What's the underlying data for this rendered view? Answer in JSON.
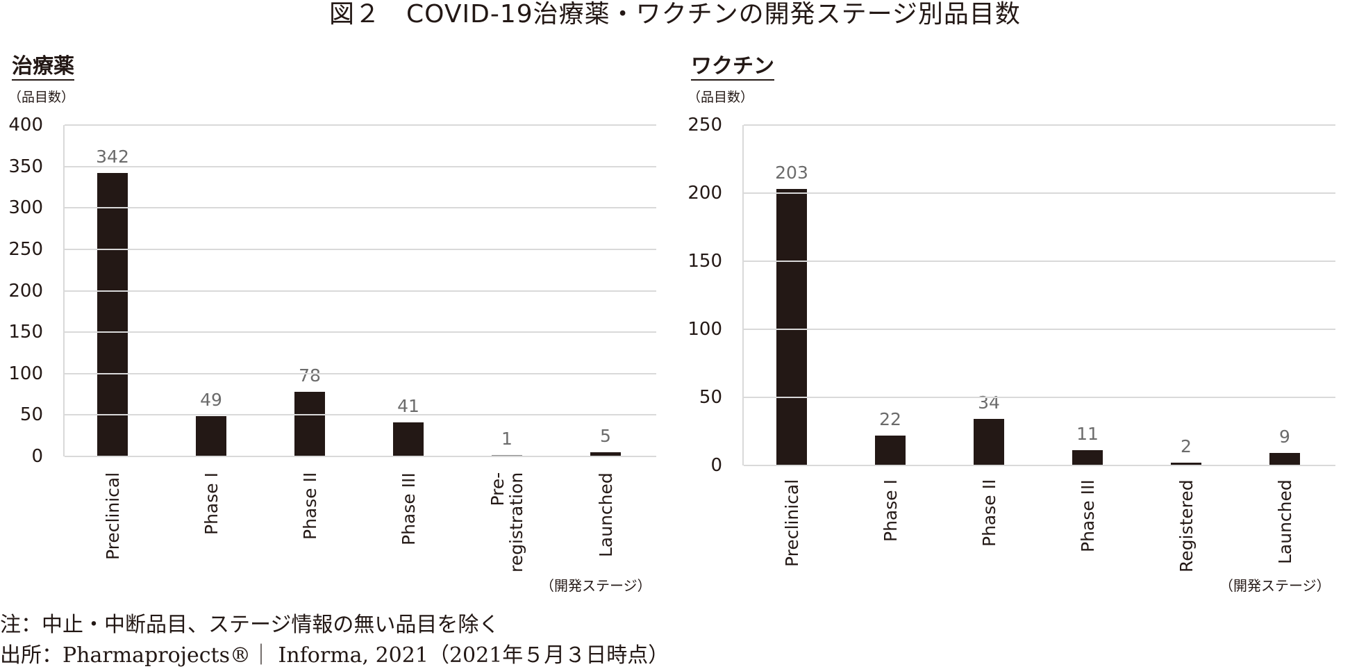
{
  "figure": {
    "title": "図２　COVID-19治療薬・ワクチンの開発ステージ別品目数",
    "note": "注：中止・中断品目、ステージ情報の無い品目を除く",
    "source": "出所：Pharmaprojects®｜ Informa, 2021（2021年５月３日時点）"
  },
  "panels": [
    {
      "title": "治療薬",
      "unit": "（品目数）",
      "x_axis_title": "（開発ステージ）"
    },
    {
      "title": "ワクチン",
      "unit": "（品目数）",
      "x_axis_title": "（開発ステージ）"
    }
  ],
  "colors": {
    "bar": "#231815",
    "gridline": "#d9d9d9",
    "data_label": "#6b6b6b",
    "text": "#231815"
  },
  "chart_data": [
    {
      "type": "bar",
      "title": "治療薬",
      "xlabel": "（開発ステージ）",
      "ylabel": "（品目数）",
      "categories": [
        "Preclinical",
        "Phase I",
        "Phase II",
        "Phase III",
        "Pre-\nregistration",
        "Launched"
      ],
      "values": [
        342,
        49,
        78,
        41,
        1,
        5
      ],
      "ylim": [
        0,
        400
      ],
      "yticks": [
        0,
        50,
        100,
        150,
        200,
        250,
        300,
        350,
        400
      ],
      "grid": true,
      "legend": null
    },
    {
      "type": "bar",
      "title": "ワクチン",
      "xlabel": "（開発ステージ）",
      "ylabel": "（品目数）",
      "categories": [
        "Preclinical",
        "Phase I",
        "Phase II",
        "Phase III",
        "Registered",
        "Launched"
      ],
      "values": [
        203,
        22,
        34,
        11,
        2,
        9
      ],
      "ylim": [
        0,
        250
      ],
      "yticks": [
        0,
        50,
        100,
        150,
        200,
        250
      ],
      "grid": true,
      "legend": null
    }
  ]
}
